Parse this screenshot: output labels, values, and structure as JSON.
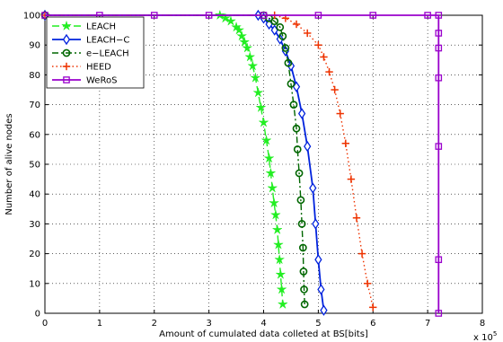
{
  "chart_data": {
    "type": "line",
    "xlabel": "Amount of cumulated data colleted at BS[bits]",
    "ylabel": "Number of alive nodes",
    "x_multiplier_label": "x 10",
    "x_multiplier_exp": "5",
    "xlim": [
      0,
      8
    ],
    "ylim": [
      0,
      100
    ],
    "x_ticks": [
      0,
      1,
      2,
      3,
      4,
      5,
      6,
      7,
      8
    ],
    "y_ticks": [
      0,
      10,
      20,
      30,
      40,
      50,
      60,
      70,
      80,
      90,
      100
    ],
    "grid": true,
    "legend_position": "top-left",
    "series": [
      {
        "name": "LEACH",
        "color": "#22ee22",
        "line_style": "dashed",
        "marker": "star",
        "x": [
          0,
          3.2,
          3.3,
          3.4,
          3.5,
          3.55,
          3.6,
          3.65,
          3.7,
          3.75,
          3.8,
          3.85,
          3.9,
          3.95,
          4.0,
          4.05,
          4.1,
          4.13,
          4.16,
          4.19,
          4.22,
          4.25,
          4.27,
          4.29,
          4.31,
          4.33,
          4.35
        ],
        "y": [
          100,
          100,
          99,
          98,
          96,
          95,
          93,
          91,
          89,
          86,
          83,
          79,
          74,
          69,
          64,
          58,
          52,
          47,
          42,
          37,
          33,
          28,
          23,
          18,
          13,
          8,
          3
        ]
      },
      {
        "name": "LEACH−C",
        "color": "#0022dd",
        "line_style": "solid",
        "marker": "diamond",
        "x": [
          0,
          3.9,
          4.0,
          4.1,
          4.2,
          4.3,
          4.4,
          4.5,
          4.6,
          4.7,
          4.8,
          4.9,
          4.95,
          5.0,
          5.05,
          5.1
        ],
        "y": [
          100,
          100,
          99,
          97,
          95,
          92,
          88,
          83,
          76,
          67,
          56,
          42,
          30,
          18,
          8,
          1
        ]
      },
      {
        "name": "e−LEACH",
        "color": "#006600",
        "line_style": "dashdot",
        "marker": "circle",
        "x": [
          0,
          4.0,
          4.1,
          4.2,
          4.3,
          4.35,
          4.4,
          4.45,
          4.5,
          4.55,
          4.6,
          4.62,
          4.65,
          4.68,
          4.7,
          4.72,
          4.73,
          4.74,
          4.75
        ],
        "y": [
          100,
          100,
          99,
          98,
          96,
          93,
          89,
          84,
          77,
          70,
          62,
          55,
          47,
          38,
          30,
          22,
          14,
          8,
          3
        ]
      },
      {
        "name": "HEED",
        "color": "#ee3300",
        "line_style": "dotted",
        "marker": "plus",
        "x": [
          0,
          4.2,
          4.4,
          4.6,
          4.8,
          5.0,
          5.1,
          5.2,
          5.3,
          5.4,
          5.5,
          5.6,
          5.7,
          5.8,
          5.9,
          6.0
        ],
        "y": [
          100,
          100,
          99,
          97,
          94,
          90,
          86,
          81,
          75,
          67,
          57,
          45,
          32,
          20,
          10,
          2
        ]
      },
      {
        "name": "WeRoS",
        "color": "#9900cc",
        "line_style": "solid",
        "marker": "square",
        "x": [
          0,
          1,
          2,
          3,
          4,
          5,
          6,
          7,
          7.2,
          7.2,
          7.2,
          7.2,
          7.2,
          7.2,
          7.2
        ],
        "y": [
          100,
          100,
          100,
          100,
          100,
          100,
          100,
          100,
          100,
          94,
          89,
          79,
          56,
          18,
          0
        ]
      }
    ]
  }
}
